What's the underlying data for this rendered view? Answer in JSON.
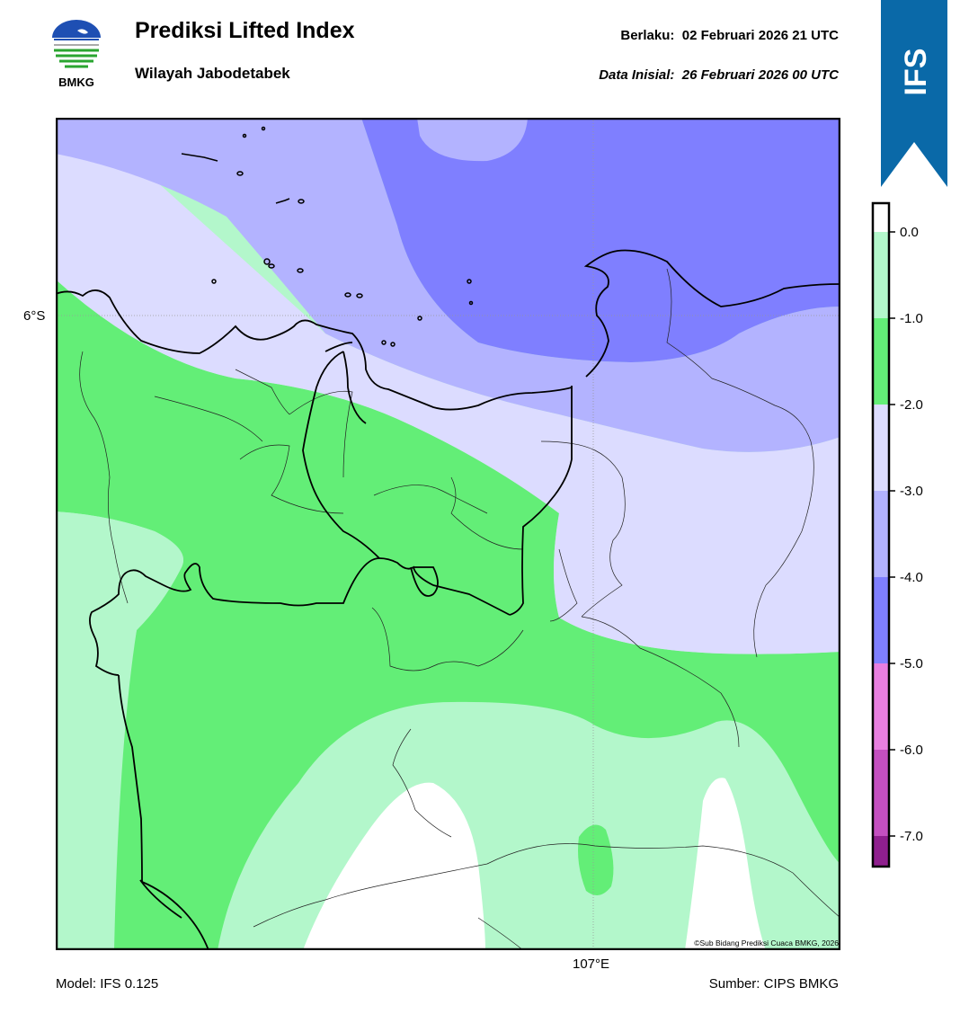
{
  "header": {
    "title": "Prediksi Lifted Index",
    "subtitle": "Wilayah Jabodetabek",
    "valid_label": "Berlaku:",
    "valid_value": "02 Februari 2026 21 UTC",
    "init_label": "Data Inisial:",
    "init_value": "26 Februari 2026 00 UTC",
    "logo_text": "BMKG",
    "model_badge": "IFS"
  },
  "map": {
    "lat_label": "6°S",
    "lon_label": "107°E",
    "copyright": "©Sub Bidang Prediksi Cuaca BMKG, 2026"
  },
  "colorbar": {
    "ticks": [
      "0.0",
      "-1.0",
      "-2.0",
      "-3.0",
      "-4.0",
      "-5.0",
      "-6.0",
      "-7.0"
    ],
    "bins": [
      {
        "range": "0 to -1",
        "color": "#b3f7cb"
      },
      {
        "range": "-1 to -2",
        "color": "#63ee77"
      },
      {
        "range": "-2 to -3",
        "color": "#dcdcff"
      },
      {
        "range": "-3 to -4",
        "color": "#b3b3ff"
      },
      {
        "range": "-4 to -5",
        "color": "#7f7fff"
      },
      {
        "range": "-5 to -6",
        "color": "#e87fe0"
      },
      {
        "range": "-6 to -7",
        "color": "#c44fc0"
      },
      {
        "range": "below -7",
        "color": "#8f1f8e"
      }
    ]
  },
  "footer": {
    "model": "Model: IFS 0.125",
    "source": "Sumber: CIPS BMKG"
  },
  "colors": {
    "ribbon": "#0a69a8",
    "li_0_to_m1": "#b3f7cb",
    "li_m1_to_m2": "#63ee77",
    "li_m2_to_m3": "#dcdcff",
    "li_m3_to_m4": "#b3b3ff",
    "li_m4_to_m5": "#7f7fff"
  }
}
